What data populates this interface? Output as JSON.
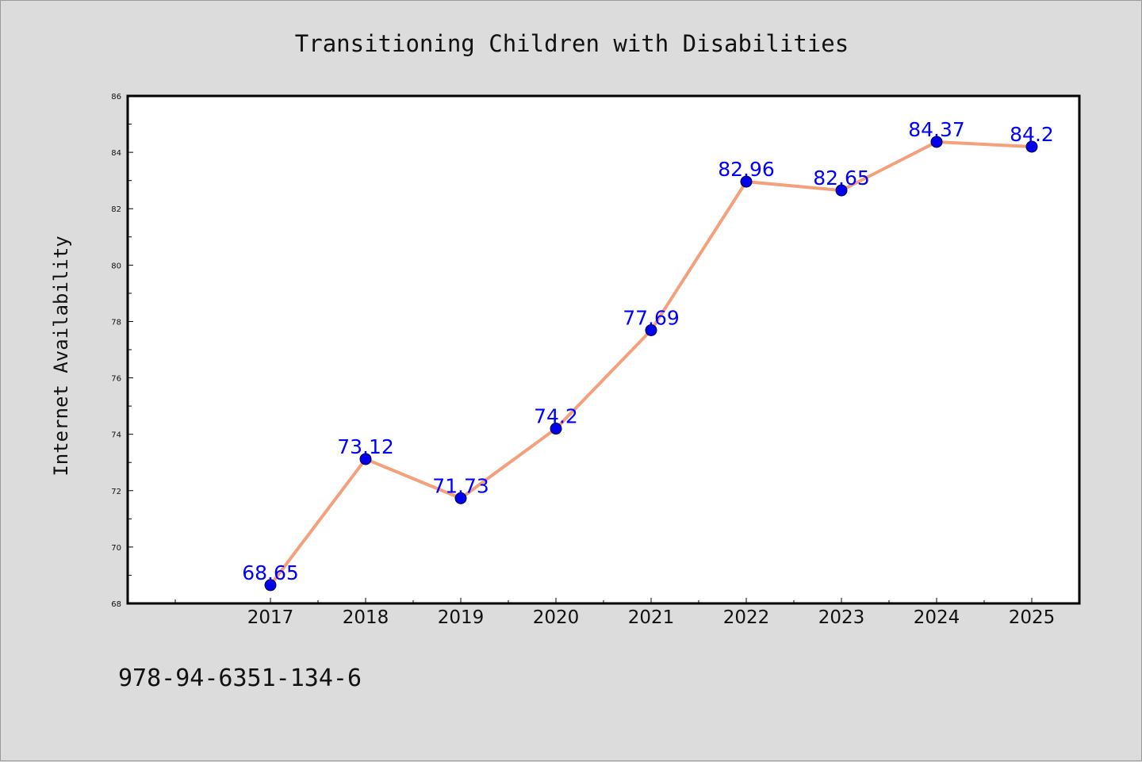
{
  "chart_data": {
    "type": "line",
    "title": "Transitioning Children with Disabilities",
    "xlabel": "",
    "ylabel": "Internet Availability",
    "categories": [
      "2017",
      "2018",
      "2019",
      "2020",
      "2021",
      "2022",
      "2023",
      "2024",
      "2025"
    ],
    "series": [
      {
        "values": [
          68.65,
          73.12,
          71.73,
          74.2,
          77.69,
          82.96,
          82.65,
          84.37,
          84.2
        ],
        "labels": [
          "68.65",
          "73.12",
          "71.73",
          "74.2",
          "77.69",
          "82.96",
          "82.65",
          "84.37",
          "84.2"
        ],
        "line_color": "#f4a07c",
        "marker_color": "#0000ee"
      }
    ],
    "ylim": [
      68,
      86
    ],
    "yticks": [
      "68",
      "70",
      "72",
      "74",
      "76",
      "78",
      "80",
      "82",
      "84",
      "86"
    ],
    "grid": false,
    "legend": "none"
  },
  "footer": {
    "isbn": "978-94-6351-134-6"
  }
}
